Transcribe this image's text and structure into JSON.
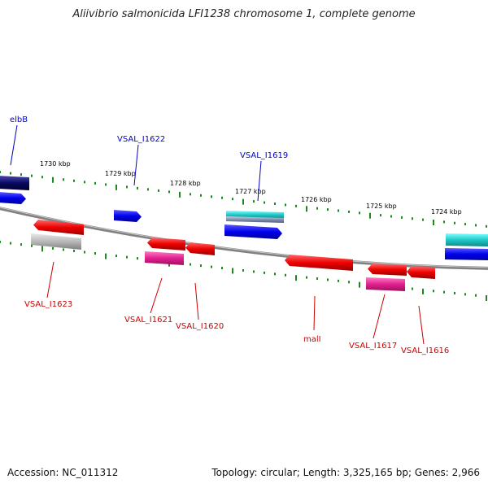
{
  "title": "Aliivibrio salmonicida LFI1238 chromosome 1, complete genome",
  "accession": "Accession: NC_011312",
  "summary": "Topology: circular; Length: 3,325,165 bp; Genes: 2,966",
  "colors": {
    "forward_gene": "#0000ee",
    "reverse_gene": "#ee0000",
    "pink_gene": "#e0208f",
    "gray_gene": "#b8b8b8",
    "cyan_gene": "#20c8c8",
    "navy_gene": "#0a0a60",
    "backbone": "#808080",
    "tick": "#1a8a1a",
    "label_forward": "#0000cc",
    "label_reverse": "#cc0000"
  },
  "scale_labels": [
    "1730 kbp",
    "1729 kbp",
    "1728 kbp",
    "1727 kbp",
    "1726 kbp",
    "1725 kbp",
    "1724 kbp"
  ],
  "gene_labels_top": [
    "elbB",
    "VSAL_I1622",
    "VSAL_I1619"
  ],
  "gene_labels_bottom": [
    "VSAL_I1623",
    "VSAL_I1621",
    "VSAL_I1620",
    "malI",
    "VSAL_I1617",
    "VSAL_I1616"
  ]
}
